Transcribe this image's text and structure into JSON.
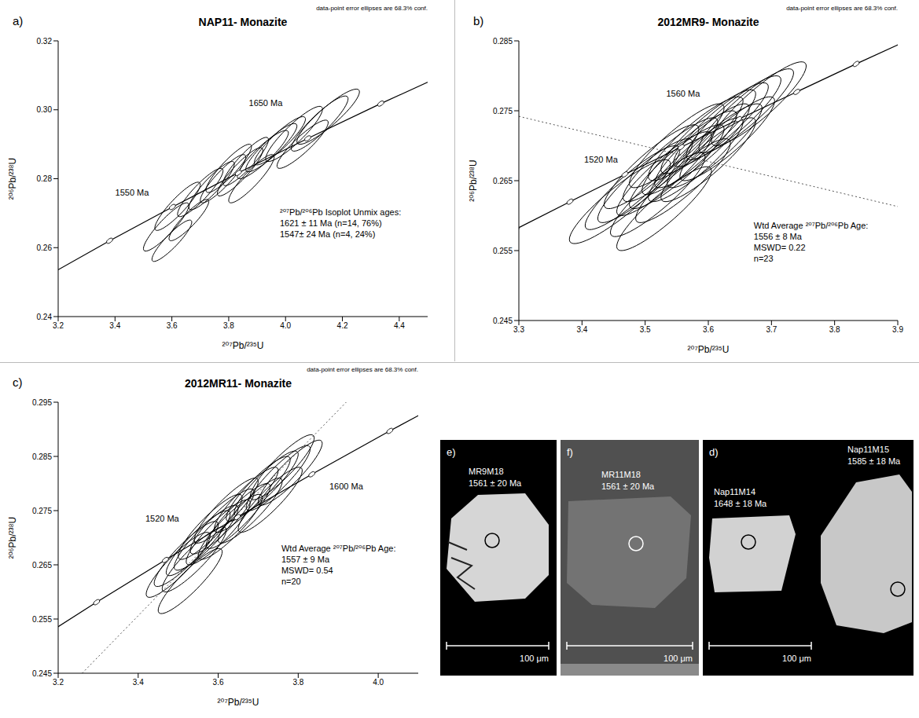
{
  "chart_data": [
    {
      "type": "concordia",
      "panel": "a)",
      "title": "NAP11- Monazite",
      "note": "data-point error ellipses are 68.3% conf.",
      "x_label": "²⁰⁷Pb/²³⁵U",
      "y_label": "²⁰⁶Pb/²³⁸U",
      "xlim": [
        3.2,
        4.5
      ],
      "xticks": [
        3.2,
        3.4,
        3.6,
        3.8,
        {
          "value": 4,
          "label": "4.0"
        },
        4.2,
        4.4
      ],
      "ylim": [
        0.24,
        0.32
      ],
      "yticks": [
        0.24,
        0.26,
        0.28,
        {
          "value": 0.3,
          "label": "0.30"
        },
        0.32
      ],
      "concordia": {
        "x": [
          2.97,
          3.17,
          3.381,
          3.602,
          3.834,
          4.078,
          4.335,
          4.604
        ],
        "y": [
          0.2426,
          0.2522,
          0.262,
          0.2718,
          0.2817,
          0.2917,
          0.3018,
          0.3119
        ]
      },
      "ellipses": {
        "x": [
          3.58,
          3.62,
          3.6,
          3.66,
          3.7,
          3.74,
          3.78,
          3.8,
          3.84,
          3.86,
          3.88,
          3.92,
          3.95,
          3.98,
          4.03,
          4.06,
          4.12,
          4.15
        ],
        "y": [
          0.266,
          0.272,
          0.262,
          0.268,
          0.276,
          0.278,
          0.28,
          0.283,
          0.282,
          0.285,
          0.28,
          0.287,
          0.289,
          0.291,
          0.293,
          0.29,
          0.296,
          0.298
        ],
        "x_err": [
          0.08,
          0.08,
          0.07,
          0.07,
          0.08,
          0.08,
          0.08,
          0.08,
          0.08,
          0.08,
          0.08,
          0.09,
          0.09,
          0.09,
          0.1,
          0.09,
          0.1,
          0.11
        ],
        "y_err": [
          0.007,
          0.007,
          0.006,
          0.006,
          0.007,
          0.007,
          0.007,
          0.007,
          0.007,
          0.007,
          0.007,
          0.007,
          0.007,
          0.007,
          0.008,
          0.007,
          0.008,
          0.008
        ],
        "rho": [
          0.9,
          0.9,
          0.9,
          0.9,
          0.9,
          0.9,
          0.9,
          0.9,
          0.9,
          0.9,
          0.9,
          0.9,
          0.9,
          0.9,
          0.9,
          0.9,
          0.9,
          0.9
        ]
      },
      "annotations": [
        {
          "text": "1550 Ma",
          "x": 3.46,
          "y": 0.276
        },
        {
          "text": "1650 Ma",
          "x": 3.93,
          "y": 0.302
        }
      ],
      "stats": [
        "²⁰⁷Pb/²⁰⁶Pb Isoplot Unmix ages:",
        "1621 ± 11 Ma (n=14, 76%)",
        "1547± 24 Ma (n=4, 24%)"
      ]
    },
    {
      "type": "concordia",
      "panel": "b)",
      "title": "2012MR9- Monazite",
      "note": "data-point error ellipses are 68.3% conf.",
      "x_label": "²⁰⁷Pb/²³⁵U",
      "y_label": "²⁰⁶Pb/²³⁸U",
      "xlim": [
        3.3,
        3.9
      ],
      "xticks": [
        3.3,
        3.4,
        3.5,
        3.6,
        3.7,
        3.8,
        3.9
      ],
      "ylim": [
        0.245,
        0.285
      ],
      "yticks": [
        0.245,
        0.255,
        0.265,
        0.275,
        0.285
      ],
      "concordia": {
        "x": [
          3.296,
          3.381,
          3.468,
          3.557,
          3.648,
          3.74,
          3.834,
          3.931
        ],
        "y": [
          0.2581,
          0.262,
          0.2659,
          0.2698,
          0.2738,
          0.2777,
          0.2817,
          0.2857
        ]
      },
      "reference_line": {
        "x": [
          3.3,
          3.9
        ],
        "y": [
          0.2742,
          0.2613
        ],
        "line_style": "dotted"
      },
      "ellipses": {
        "x": [
          3.46,
          3.48,
          3.5,
          3.51,
          3.52,
          3.53,
          3.54,
          3.55,
          3.55,
          3.56,
          3.57,
          3.58,
          3.58,
          3.59,
          3.6,
          3.6,
          3.61,
          3.62,
          3.63,
          3.64,
          3.66,
          3.53,
          3.68
        ],
        "y": [
          0.262,
          0.264,
          0.265,
          0.267,
          0.263,
          0.266,
          0.268,
          0.267,
          0.27,
          0.265,
          0.269,
          0.271,
          0.268,
          0.27,
          0.272,
          0.268,
          0.27,
          0.273,
          0.271,
          0.274,
          0.275,
          0.261,
          0.276
        ],
        "x_err": [
          0.08,
          0.075,
          0.075,
          0.075,
          0.075,
          0.075,
          0.075,
          0.075,
          0.075,
          0.075,
          0.075,
          0.075,
          0.075,
          0.075,
          0.075,
          0.075,
          0.075,
          0.075,
          0.075,
          0.075,
          0.075,
          0.075,
          0.075
        ],
        "y_err": [
          0.006,
          0.006,
          0.006,
          0.006,
          0.006,
          0.006,
          0.006,
          0.006,
          0.006,
          0.006,
          0.006,
          0.006,
          0.006,
          0.006,
          0.006,
          0.006,
          0.006,
          0.006,
          0.006,
          0.006,
          0.006,
          0.006,
          0.006
        ],
        "rho": [
          0.9,
          0.9,
          0.9,
          0.9,
          0.9,
          0.9,
          0.9,
          0.9,
          0.9,
          0.9,
          0.9,
          0.9,
          0.9,
          0.9,
          0.9,
          0.9,
          0.9,
          0.9,
          0.9,
          0.9,
          0.9,
          0.9,
          0.9
        ]
      },
      "annotations": [
        {
          "text": "1560 Ma",
          "x": 3.56,
          "y": 0.2775
        },
        {
          "text": "1520 Ma",
          "x": 3.43,
          "y": 0.268
        }
      ],
      "stats": [
        "Wtd Average ²⁰⁷Pb/²⁰⁶Pb Age:",
        "1556 ± 8 Ma",
        "MSWD= 0.22",
        "n=23"
      ]
    },
    {
      "type": "concordia",
      "panel": "c)",
      "title": "2012MR11- Monazite",
      "note": "data-point error ellipses are 68.3% conf.",
      "x_label": "²⁰⁷Pb/²³⁵U",
      "y_label": "²⁰⁶Pb/²³⁸U",
      "xlim": [
        3.2,
        4.1
      ],
      "xticks": [
        3.2,
        3.4,
        3.6,
        3.8,
        {
          "value": 4,
          "label": "4.0"
        }
      ],
      "ylim": [
        0.245,
        0.295
      ],
      "yticks": [
        0.245,
        0.255,
        0.265,
        0.275,
        0.285,
        0.295
      ],
      "concordia": {
        "x": [
          3.13,
          3.296,
          3.468,
          3.648,
          3.834,
          4.029,
          4.231
        ],
        "y": [
          0.2503,
          0.2581,
          0.2659,
          0.2738,
          0.2817,
          0.2897,
          0.2977
        ]
      },
      "reference_line": {
        "x": [
          3.26,
          3.92
        ],
        "y": [
          0.245,
          0.295
        ],
        "line_style": "dotted"
      },
      "ellipses": {
        "x": [
          3.5,
          3.52,
          3.54,
          3.55,
          3.57,
          3.58,
          3.6,
          3.61,
          3.62,
          3.63,
          3.65,
          3.67,
          3.68,
          3.7,
          3.72,
          3.73,
          3.75,
          3.76,
          3.78,
          3.53
        ],
        "y": [
          0.265,
          0.267,
          0.266,
          0.269,
          0.27,
          0.272,
          0.271,
          0.273,
          0.275,
          0.272,
          0.274,
          0.277,
          0.275,
          0.279,
          0.28,
          0.277,
          0.281,
          0.283,
          0.282,
          0.262
        ],
        "x_err": [
          0.08,
          0.08,
          0.08,
          0.08,
          0.08,
          0.08,
          0.08,
          0.08,
          0.08,
          0.08,
          0.08,
          0.08,
          0.08,
          0.08,
          0.08,
          0.08,
          0.08,
          0.08,
          0.08,
          0.08
        ],
        "y_err": [
          0.006,
          0.006,
          0.006,
          0.006,
          0.006,
          0.006,
          0.006,
          0.006,
          0.006,
          0.006,
          0.006,
          0.006,
          0.006,
          0.006,
          0.006,
          0.006,
          0.006,
          0.006,
          0.006,
          0.006
        ],
        "rho": [
          0.9,
          0.9,
          0.9,
          0.9,
          0.9,
          0.9,
          0.9,
          0.9,
          0.9,
          0.9,
          0.9,
          0.9,
          0.9,
          0.9,
          0.9,
          0.9,
          0.9,
          0.9,
          0.9,
          0.9
        ]
      },
      "annotations": [
        {
          "text": "1520 Ma",
          "x": 3.46,
          "y": 0.2735
        },
        {
          "text": "1600 Ma",
          "x": 3.92,
          "y": 0.2795
        }
      ],
      "stats": [
        "Wtd Average ²⁰⁷Pb/²⁰⁶Pb Age:",
        "1557 ± 9 Ma",
        "MSWD= 0.54",
        "n=20"
      ]
    }
  ],
  "images": [
    {
      "panel": "e)",
      "grains": [
        {
          "label": "MR9M18",
          "age": "1561 ± 20 Ma"
        }
      ],
      "scale_bar": "100 μm"
    },
    {
      "panel": "f)",
      "grains": [
        {
          "label": "MR11M18",
          "age": "1561 ± 20 Ma"
        }
      ],
      "scale_bar": "100 μm"
    },
    {
      "panel": "d)",
      "grains": [
        {
          "label": "Nap11M14",
          "age": "1648 ± 18 Ma"
        },
        {
          "label": "Nap11M15",
          "age": "1585 ± 18 Ma"
        }
      ],
      "scale_bar": "100 μm"
    }
  ]
}
